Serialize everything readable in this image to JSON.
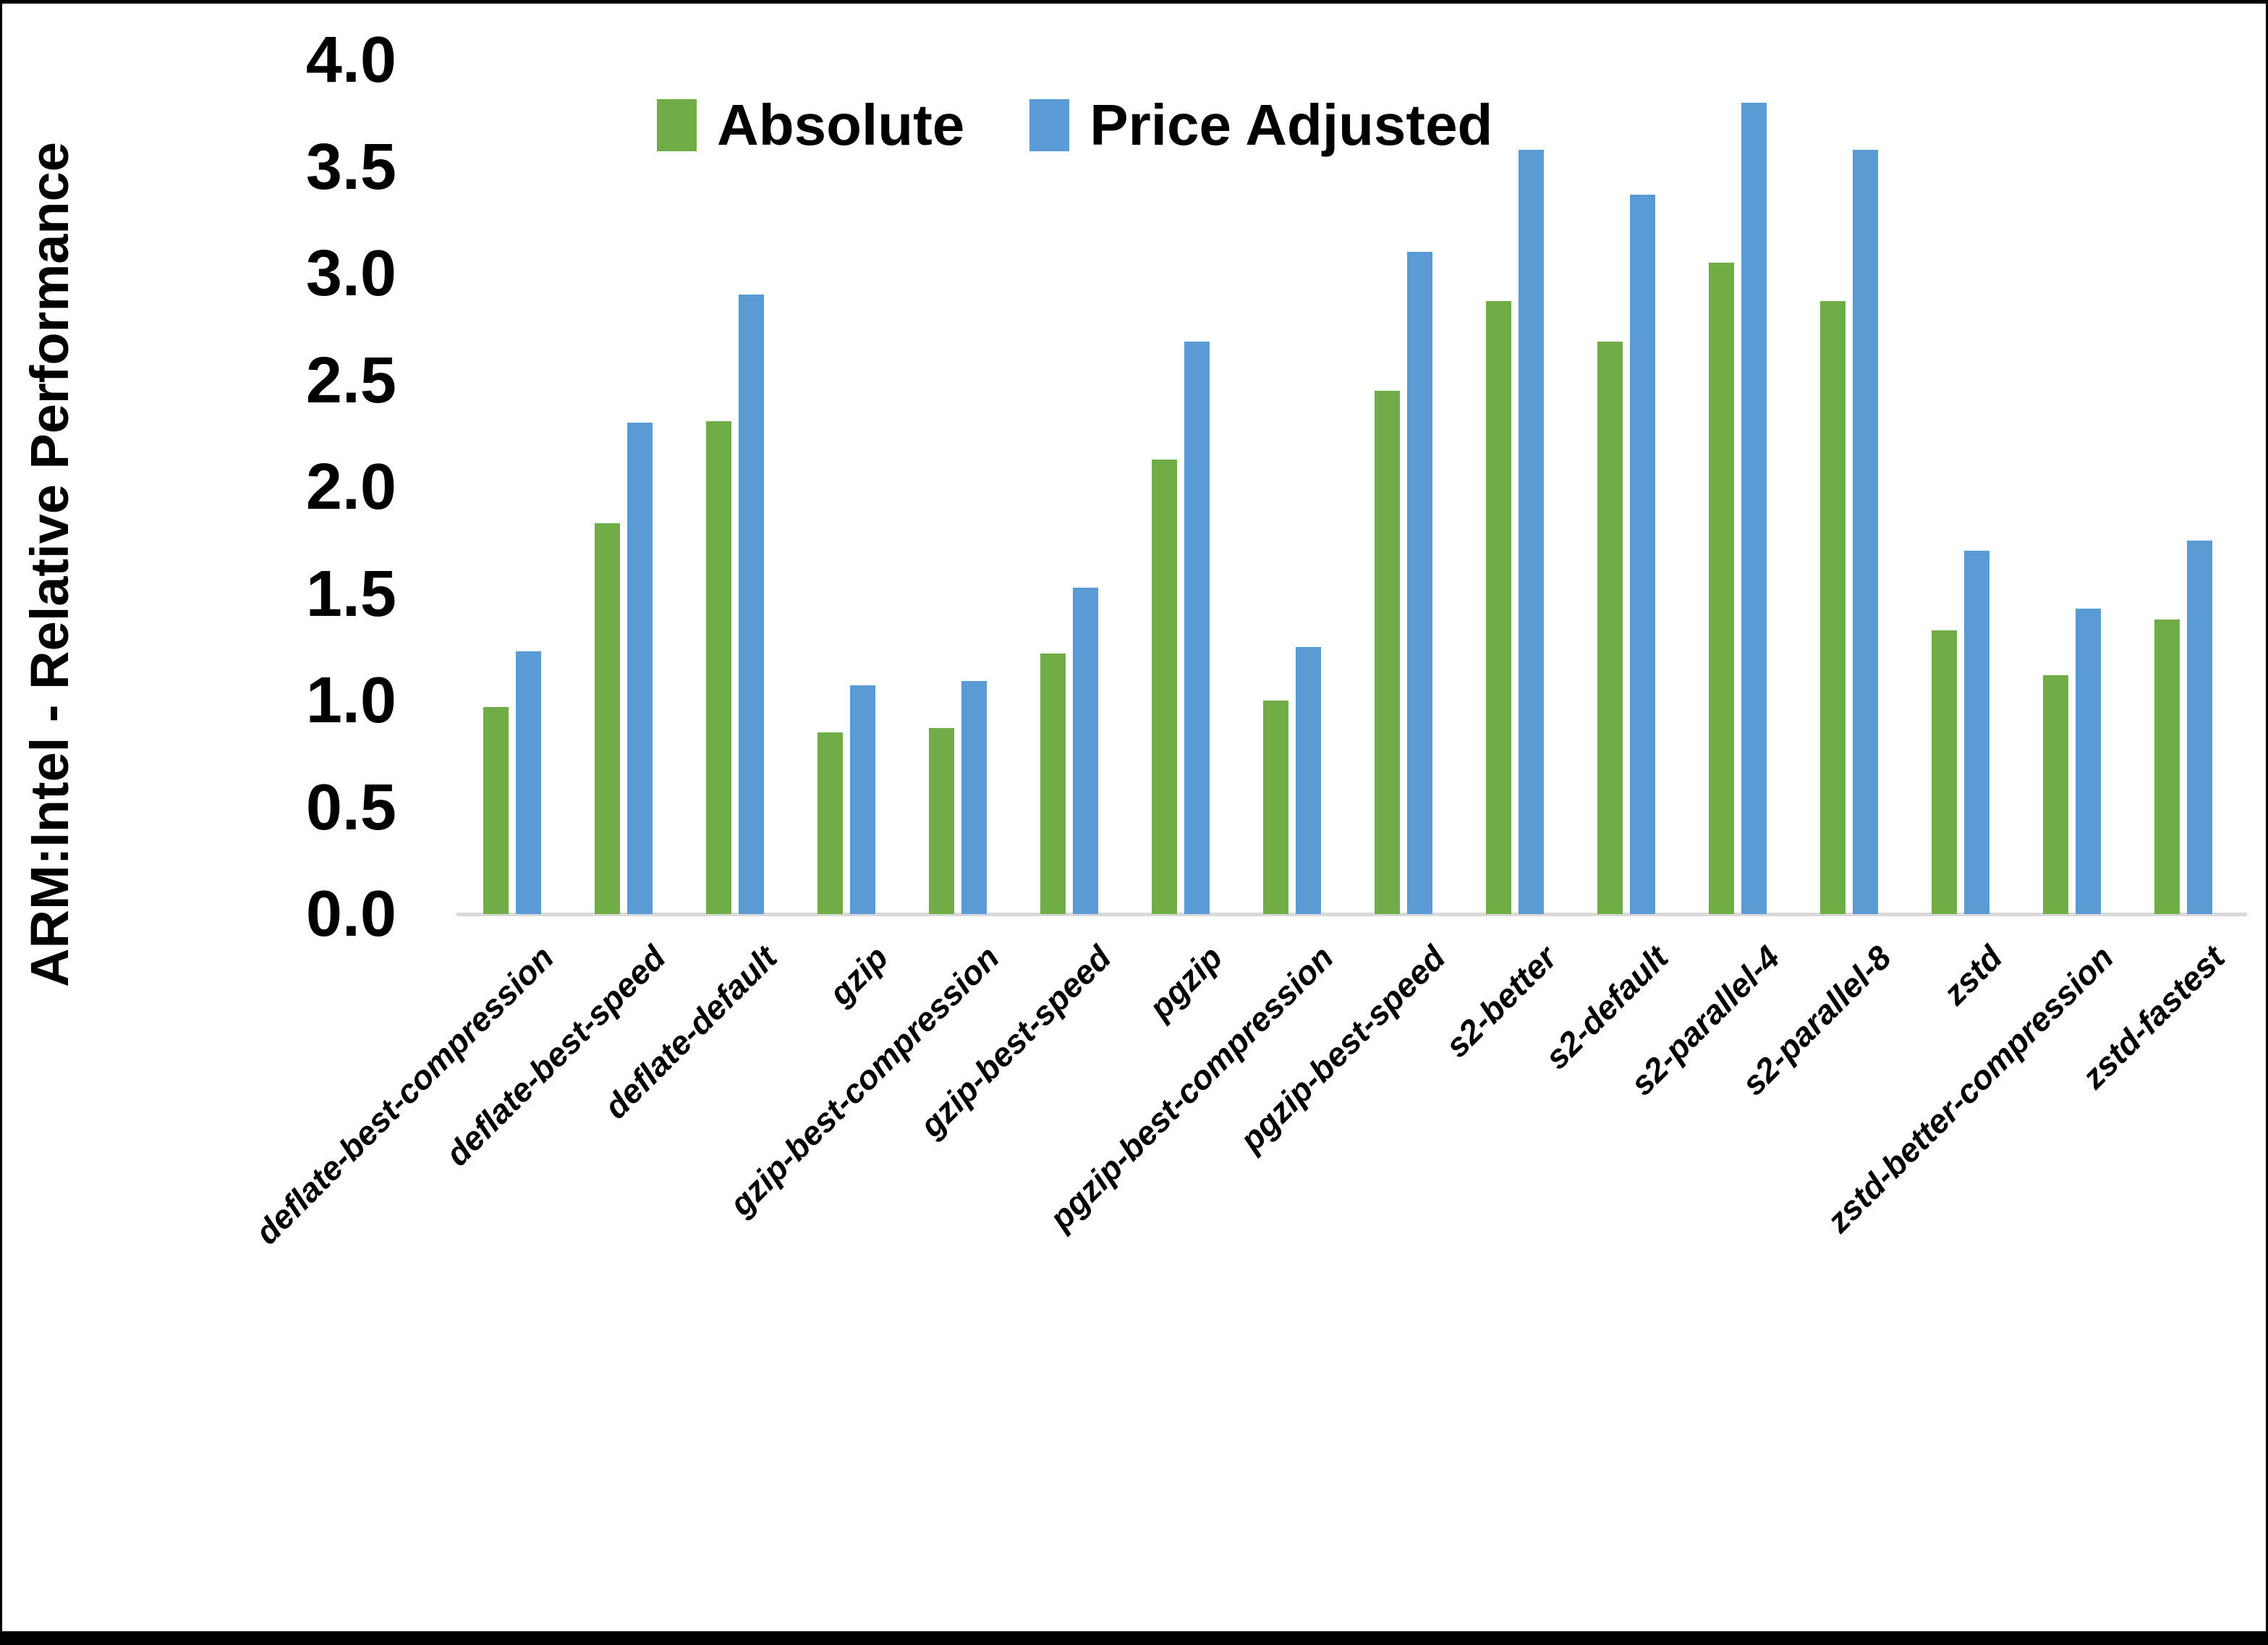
{
  "chart_data": {
    "type": "bar",
    "title": "",
    "ylabel": "ARM:Intel - Relative Performance",
    "xlabel": "",
    "ylim": [
      0.0,
      4.0
    ],
    "ytick_step": 0.5,
    "ytick_labels": [
      "0.0",
      "0.5",
      "1.0",
      "1.5",
      "2.0",
      "2.5",
      "3.0",
      "3.5",
      "4.0"
    ],
    "grid": false,
    "legend_position": "top-center",
    "categories": [
      "deflate-best-compression",
      "deflate-best-speed",
      "deflate-default",
      "gzip",
      "gzip-best-compression",
      "gzip-best-speed",
      "pgzip",
      "pgzip-best-compression",
      "pgzip-best-speed",
      "s2-better",
      "s2-default",
      "s2-parallel-4",
      "s2-parallel-8",
      "zstd",
      "zstd-better-compression",
      "zstd-fastest"
    ],
    "series": [
      {
        "name": "Absolute",
        "color": "#70AD47",
        "values": [
          0.97,
          1.83,
          2.31,
          0.85,
          0.87,
          1.22,
          2.13,
          1.0,
          2.45,
          2.87,
          2.68,
          3.05,
          2.87,
          1.33,
          1.12,
          1.38
        ]
      },
      {
        "name": "Price Adjusted",
        "color": "#5B9BD5",
        "values": [
          1.23,
          2.3,
          2.9,
          1.07,
          1.09,
          1.53,
          2.68,
          1.25,
          3.1,
          3.58,
          3.37,
          3.8,
          3.58,
          1.7,
          1.43,
          1.75
        ]
      }
    ],
    "axis_color": "#D9D9D9",
    "text_color": "#000000",
    "background_color": "#FFFFFF"
  }
}
